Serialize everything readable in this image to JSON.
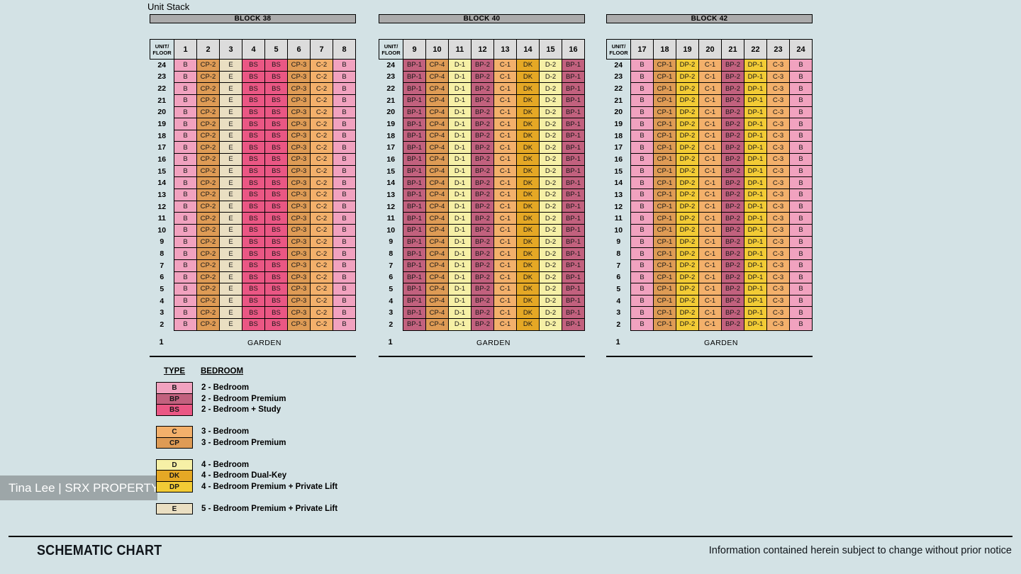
{
  "page": {
    "title": "Unit Stack",
    "background": "#D3E2E5"
  },
  "colors": {
    "block_bar": "#ABABAB",
    "header_cell": "#DCDCDC",
    "types": {
      "B": "#F1A2BF",
      "BP": "#C2617E",
      "BS": "#EA5784",
      "C": "#F3B06B",
      "CP": "#DE9B55",
      "D": "#F6F0A6",
      "DK": "#E5A825",
      "DP": "#F2CB35",
      "E": "#EADFC2"
    }
  },
  "stack_chart": {
    "corner_label": "UNIT/\nFLOOR",
    "floors": [
      24,
      23,
      22,
      21,
      20,
      19,
      18,
      17,
      16,
      15,
      14,
      13,
      12,
      11,
      10,
      9,
      8,
      7,
      6,
      5,
      4,
      3,
      2
    ],
    "garden_floor": "1",
    "garden_label": "GARDEN",
    "blocks": [
      {
        "name": "BLOCK 38",
        "units": [
          "1",
          "2",
          "3",
          "4",
          "5",
          "6",
          "7",
          "8"
        ],
        "stack": [
          "B",
          "CP-2",
          "E",
          "BS",
          "BS",
          "CP-3",
          "C-2",
          "B"
        ]
      },
      {
        "name": "BLOCK 40",
        "units": [
          "9",
          "10",
          "11",
          "12",
          "13",
          "14",
          "15",
          "16"
        ],
        "stack": [
          "BP-1",
          "CP-4",
          "D-1",
          "BP-2",
          "C-1",
          "DK",
          "D-2",
          "BP-1"
        ]
      },
      {
        "name": "BLOCK 42",
        "units": [
          "17",
          "18",
          "19",
          "20",
          "21",
          "22",
          "23",
          "24"
        ],
        "stack": [
          "B",
          "CP-1",
          "DP-2",
          "C-1",
          "BP-2",
          "DP-1",
          "C-3",
          "B"
        ]
      }
    ]
  },
  "legend": {
    "type_header": "TYPE",
    "bedroom_header": "BEDROOM",
    "groups": [
      [
        {
          "code": "B",
          "label": "2 - Bedroom"
        },
        {
          "code": "BP",
          "label": "2 - Bedroom Premium"
        },
        {
          "code": "BS",
          "label": "2 - Bedroom + Study"
        }
      ],
      [
        {
          "code": "C",
          "label": "3 - Bedroom"
        },
        {
          "code": "CP",
          "label": "3 - Bedroom Premium"
        }
      ],
      [
        {
          "code": "D",
          "label": "4 - Bedroom"
        },
        {
          "code": "DK",
          "label": "4 - Bedroom Dual-Key"
        },
        {
          "code": "DP",
          "label": "4 - Bedroom Premium + Private Lift"
        }
      ],
      [
        {
          "code": "E",
          "label": "5 - Bedroom Premium + Private Lift"
        }
      ]
    ]
  },
  "watermark": {
    "text": "Tina Lee | SRX PROPERTY"
  },
  "footer": {
    "title": "SCHEMATIC CHART",
    "disclaimer": "Information contained herein subject to change without prior notice"
  }
}
